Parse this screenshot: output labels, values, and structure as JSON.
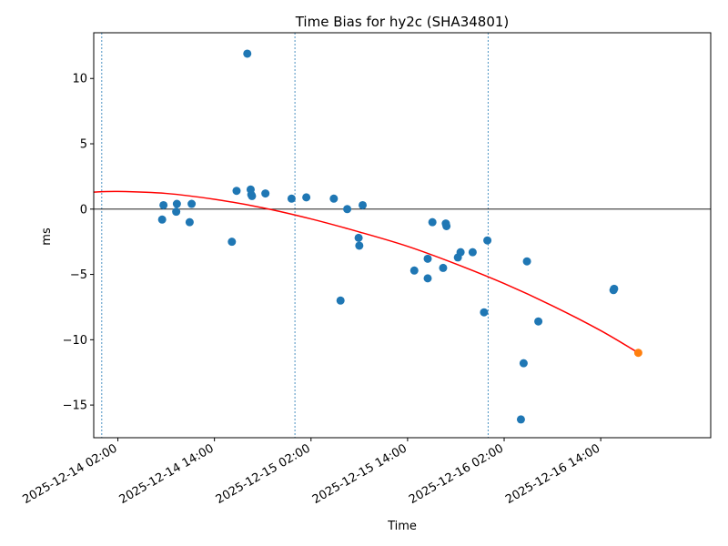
{
  "chart_data": {
    "type": "scatter",
    "title": "Time Bias for hy2c (SHA34801)",
    "xlabel": "Time",
    "ylabel": "ms",
    "xlim": [
      "2025-12-13T23:00",
      "2025-12-17T03:40"
    ],
    "ylim": [
      -17.5,
      13.5
    ],
    "x_ticks": [
      {
        "t": "2025-12-14T02:00",
        "label": "2025-12-14 02:00"
      },
      {
        "t": "2025-12-14T14:00",
        "label": "2025-12-14 14:00"
      },
      {
        "t": "2025-12-15T02:00",
        "label": "2025-12-15 02:00"
      },
      {
        "t": "2025-12-15T14:00",
        "label": "2025-12-15 14:00"
      },
      {
        "t": "2025-12-16T02:00",
        "label": "2025-12-16 02:00"
      },
      {
        "t": "2025-12-16T14:00",
        "label": "2025-12-16 14:00"
      }
    ],
    "y_ticks": [
      10,
      5,
      0,
      -5,
      -10,
      -15
    ],
    "zero_line": 0,
    "vertical_lines": [
      "2025-12-14T00:00",
      "2025-12-15T00:00",
      "2025-12-16T00:00"
    ],
    "colors": {
      "points": "#1f77b4",
      "fit": "#ff0000",
      "last_point": "#ff7f0e",
      "vlines": "#1f77b4",
      "zero": "#000000"
    },
    "series": [
      {
        "kind": "points",
        "points": [
          {
            "x": "2025-12-14T07:40",
            "y": 0.3
          },
          {
            "x": "2025-12-14T07:30",
            "y": -0.8
          },
          {
            "x": "2025-12-14T09:20",
            "y": 0.4
          },
          {
            "x": "2025-12-14T09:15",
            "y": -0.2
          },
          {
            "x": "2025-12-14T11:10",
            "y": 0.4
          },
          {
            "x": "2025-12-14T10:55",
            "y": -1.0
          },
          {
            "x": "2025-12-14T16:10",
            "y": -2.5
          },
          {
            "x": "2025-12-14T16:45",
            "y": 1.4
          },
          {
            "x": "2025-12-14T18:05",
            "y": 11.9
          },
          {
            "x": "2025-12-14T18:30",
            "y": 1.5
          },
          {
            "x": "2025-12-14T18:35",
            "y": 1.1
          },
          {
            "x": "2025-12-14T18:40",
            "y": 1.0
          },
          {
            "x": "2025-12-14T20:20",
            "y": 1.2
          },
          {
            "x": "2025-12-14T23:35",
            "y": 0.8
          },
          {
            "x": "2025-12-15T01:25",
            "y": 0.9
          },
          {
            "x": "2025-12-15T04:50",
            "y": 0.8
          },
          {
            "x": "2025-12-15T05:40",
            "y": -7.0
          },
          {
            "x": "2025-12-15T06:30",
            "y": 0.0
          },
          {
            "x": "2025-12-15T07:55",
            "y": -2.2
          },
          {
            "x": "2025-12-15T08:00",
            "y": -2.8
          },
          {
            "x": "2025-12-15T08:25",
            "y": 0.3
          },
          {
            "x": "2025-12-15T14:50",
            "y": -4.7
          },
          {
            "x": "2025-12-15T16:30",
            "y": -3.8
          },
          {
            "x": "2025-12-15T16:30",
            "y": -5.3
          },
          {
            "x": "2025-12-15T17:05",
            "y": -1.0
          },
          {
            "x": "2025-12-15T18:25",
            "y": -4.5
          },
          {
            "x": "2025-12-15T18:45",
            "y": -1.1
          },
          {
            "x": "2025-12-15T18:50",
            "y": -1.3
          },
          {
            "x": "2025-12-15T20:15",
            "y": -3.7
          },
          {
            "x": "2025-12-15T20:35",
            "y": -3.3
          },
          {
            "x": "2025-12-15T22:05",
            "y": -3.3
          },
          {
            "x": "2025-12-15T23:30",
            "y": -7.9
          },
          {
            "x": "2025-12-15T23:55",
            "y": -2.4
          },
          {
            "x": "2025-12-16T04:05",
            "y": -16.1
          },
          {
            "x": "2025-12-16T04:25",
            "y": -11.8
          },
          {
            "x": "2025-12-16T04:50",
            "y": -4.0
          },
          {
            "x": "2025-12-16T06:15",
            "y": -8.6
          },
          {
            "x": "2025-12-16T15:35",
            "y": -6.2
          },
          {
            "x": "2025-12-16T15:40",
            "y": -6.1
          }
        ]
      },
      {
        "kind": "fit",
        "points": [
          {
            "x": "2025-12-13T23:00",
            "y": 1.3
          },
          {
            "x": "2025-12-14T02:00",
            "y": 1.35
          },
          {
            "x": "2025-12-14T08:00",
            "y": 1.2
          },
          {
            "x": "2025-12-14T14:00",
            "y": 0.75
          },
          {
            "x": "2025-12-14T20:00",
            "y": 0.1
          },
          {
            "x": "2025-12-15T02:00",
            "y": -0.75
          },
          {
            "x": "2025-12-15T08:00",
            "y": -1.75
          },
          {
            "x": "2025-12-15T14:00",
            "y": -2.85
          },
          {
            "x": "2025-12-15T20:00",
            "y": -4.2
          },
          {
            "x": "2025-12-16T02:00",
            "y": -5.7
          },
          {
            "x": "2025-12-16T08:00",
            "y": -7.4
          },
          {
            "x": "2025-12-16T14:00",
            "y": -9.3
          },
          {
            "x": "2025-12-16T18:40",
            "y": -11.0
          }
        ]
      },
      {
        "kind": "last_point",
        "points": [
          {
            "x": "2025-12-16T18:40",
            "y": -11.0
          }
        ]
      }
    ]
  }
}
